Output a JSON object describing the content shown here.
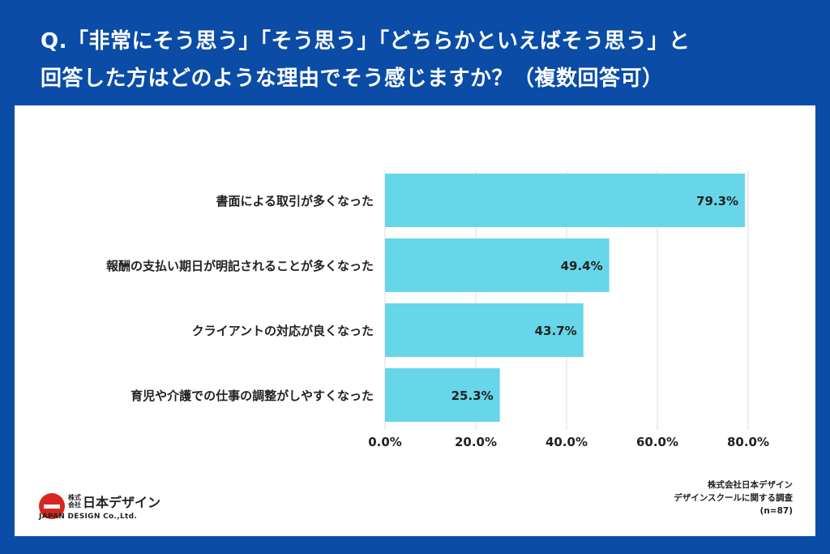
{
  "question": {
    "line1": "Q.「非常にそう思う」「そう思う」「どちらかといえばそう思う」と",
    "line2": "回答した方はどのような理由でそう感じますか？（複数回答可）"
  },
  "colors": {
    "background": "#0a4ca6",
    "bar": "#66d6e8",
    "gridline": "#dddddd",
    "text": "#222222"
  },
  "chart_data": {
    "type": "bar",
    "orientation": "horizontal",
    "categories": [
      "書面による取引が多くなった",
      "報酬の支払い期日が明記されることが多くなった",
      "クライアントの対応が良くなった",
      "育児や介護での仕事の調整がしやすくなった"
    ],
    "values": [
      79.3,
      49.4,
      43.7,
      25.3
    ],
    "value_labels": [
      "79.3%",
      "49.4%",
      "43.7%",
      "25.3%"
    ],
    "xlim": [
      0,
      80
    ],
    "xticks": [
      0,
      20,
      40,
      60,
      80
    ],
    "xtick_labels": [
      "0.0%",
      "20.0%",
      "40.0%",
      "60.0%",
      "80.0%"
    ],
    "title": "",
    "xlabel": "",
    "ylabel": "",
    "grid": true
  },
  "logo": {
    "small_text": "株式会社",
    "name_jp": "日本デザイン",
    "name_en": "JAPAN DESIGN Co.,Ltd."
  },
  "source": {
    "line1": "株式会社日本デザイン",
    "line2": "デザインスクールに関する調査",
    "line3": "(n=87)"
  }
}
